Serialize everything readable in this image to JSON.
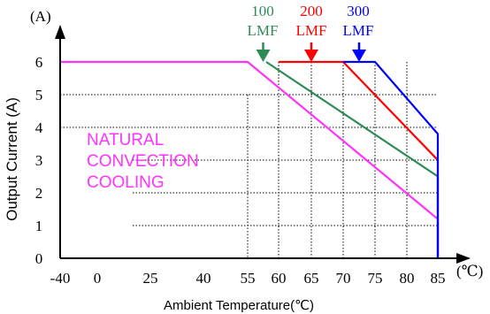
{
  "chart_data": {
    "type": "line",
    "xlabel": "Ambient Temperature(℃)",
    "ylabel": "Output Current (A)",
    "x_unit": "(℃)",
    "y_unit": "(A)",
    "xlim": [
      -40,
      85
    ],
    "ylim": [
      0,
      6
    ],
    "x_ticks": [
      "-40",
      "0",
      "25",
      "40",
      "55",
      "60",
      "65",
      "70",
      "75",
      "80",
      "85"
    ],
    "y_ticks": [
      "0",
      "1",
      "2",
      "3",
      "4",
      "5",
      "6"
    ],
    "grid": true,
    "series": [
      {
        "name": "NATURAL CONVECTION COOLING",
        "color": "#ff33ff",
        "points": [
          [
            -40,
            6
          ],
          [
            55,
            6
          ],
          [
            85,
            1.2
          ],
          [
            85,
            0
          ]
        ]
      },
      {
        "name": "100 LMF",
        "color": "#2e8b57",
        "points": [
          [
            58,
            6
          ],
          [
            85,
            2.5
          ],
          [
            85,
            0
          ]
        ]
      },
      {
        "name": "200 LMF",
        "color": "#ff0000",
        "points": [
          [
            60,
            6
          ],
          [
            70,
            6
          ],
          [
            85,
            3.0
          ],
          [
            85,
            0
          ]
        ]
      },
      {
        "name": "300 LMF",
        "color": "#0000ff",
        "points": [
          [
            70,
            6
          ],
          [
            75,
            6
          ],
          [
            85,
            3.8
          ],
          [
            85,
            0
          ]
        ]
      }
    ],
    "annotations": [
      {
        "text": "NATURAL\nCONVECTION\nCOOLING",
        "lines": [
          "NATURAL",
          "CONVECTION",
          "COOLING"
        ],
        "color": "#ff33ff"
      },
      {
        "value": "100",
        "unit": "LMF",
        "color": "#2e8b57",
        "arrow_x": 57.5
      },
      {
        "value": "200",
        "unit": "LMF",
        "color": "#ff0000",
        "arrow_x": 65
      },
      {
        "value": "300",
        "unit": "LMF",
        "color": "#0000ff",
        "arrow_x": 72.5
      }
    ]
  }
}
